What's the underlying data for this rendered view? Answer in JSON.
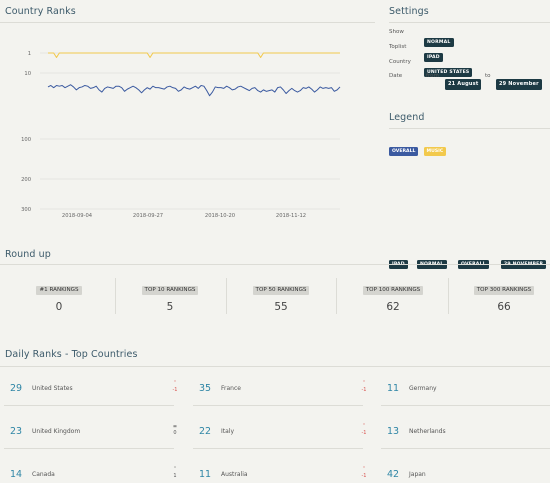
{
  "country_ranks": {
    "title": "Country Ranks"
  },
  "chart_data": {
    "type": "line",
    "y_scale": "log-like (rank, inverted)",
    "y_ticks": [
      "1",
      "10",
      "100",
      "200",
      "300"
    ],
    "x_ticks": [
      "2018-09-04",
      "2018-09-27",
      "2018-10-20",
      "2018-11-12"
    ],
    "grid": true,
    "series": [
      {
        "name": "MUSIC",
        "color": "#f2c94c",
        "values": [
          1,
          1,
          1,
          3,
          1,
          1,
          1,
          1,
          1,
          1,
          1,
          1,
          1,
          1,
          1,
          1,
          1,
          1,
          1,
          1,
          1,
          1,
          1,
          1,
          1,
          1,
          1,
          1,
          1,
          1,
          1,
          1,
          1,
          1,
          1,
          1,
          3,
          1,
          1,
          1,
          1,
          1,
          1,
          1,
          1,
          1,
          1,
          1,
          1,
          1,
          1,
          1,
          1,
          1,
          1,
          1,
          1,
          1,
          1,
          1,
          1,
          1,
          1,
          1,
          1,
          1,
          1,
          1,
          1,
          1,
          1,
          1,
          1,
          1,
          1,
          3,
          1,
          1,
          1,
          1,
          1,
          1,
          1,
          1,
          1,
          1,
          1,
          1,
          1,
          1,
          1,
          1,
          1,
          1,
          1,
          1,
          1,
          1,
          1,
          1,
          1,
          1,
          1,
          1
        ]
      },
      {
        "name": "OVERALL",
        "color": "#3b5aa0",
        "values": [
          29,
          27,
          30,
          27,
          28,
          27,
          30,
          28,
          26,
          29,
          33,
          30,
          29,
          27,
          28,
          31,
          30,
          28,
          33,
          36,
          31,
          29,
          30,
          31,
          28,
          28,
          30,
          35,
          32,
          30,
          28,
          30,
          33,
          37,
          33,
          30,
          32,
          28,
          30,
          30,
          31,
          32,
          29,
          28,
          30,
          31,
          35,
          33,
          29,
          31,
          32,
          30,
          28,
          31,
          27,
          28,
          34,
          41,
          36,
          29,
          30,
          30,
          31,
          28,
          30,
          33,
          32,
          29,
          28,
          30,
          32,
          34,
          31,
          30,
          34,
          36,
          33,
          35,
          34,
          33,
          36,
          30,
          29,
          33,
          38,
          34,
          31,
          34,
          36,
          34,
          30,
          31,
          29,
          32,
          36,
          33,
          29,
          31,
          30,
          31,
          30,
          35,
          33,
          29
        ]
      }
    ]
  },
  "settings": {
    "title": "Settings",
    "show_label": "Show",
    "show_value": "NORMAL",
    "toplist_label": "Toplist",
    "toplist_value": "IPAD",
    "country_label": "Country",
    "country_value": "UNITED STATES",
    "date_label": "Date",
    "from_label": "from",
    "from_value": "21 August",
    "to_label": "to",
    "to_value": "29 November"
  },
  "legend": {
    "title": "Legend",
    "overall": "OVERALL",
    "music": "MUSIC"
  },
  "roundup": {
    "title": "Round up",
    "badges": [
      "IPAD",
      "NORMAL",
      "OVERALL",
      "29 NOVEMBER"
    ],
    "columns": [
      {
        "label": "#1 RANKINGS",
        "value": "0"
      },
      {
        "label": "TOP 10 RANKINGS",
        "value": "5"
      },
      {
        "label": "TOP 50 RANKINGS",
        "value": "55"
      },
      {
        "label": "TOP 100 RANKINGS",
        "value": "62"
      },
      {
        "label": "TOP 300 RANKINGS",
        "value": "66"
      }
    ]
  },
  "daily": {
    "title": "Daily Ranks - Top Countries",
    "items": [
      {
        "rank": "29",
        "country": "United States",
        "change": "-1",
        "trend": "down"
      },
      {
        "rank": "35",
        "country": "France",
        "change": "-1",
        "trend": "down"
      },
      {
        "rank": "11",
        "country": "Germany",
        "change": "",
        "trend": "down"
      },
      {
        "rank": "23",
        "country": "United Kingdom",
        "change": "0",
        "trend": "same"
      },
      {
        "rank": "22",
        "country": "Italy",
        "change": "-1",
        "trend": "down"
      },
      {
        "rank": "13",
        "country": "Netherlands",
        "change": "",
        "trend": "down"
      },
      {
        "rank": "14",
        "country": "Canada",
        "change": "1",
        "trend": "up"
      },
      {
        "rank": "11",
        "country": "Australia",
        "change": "-1",
        "trend": "down"
      },
      {
        "rank": "42",
        "country": "Japan",
        "change": "",
        "trend": "down"
      }
    ]
  }
}
